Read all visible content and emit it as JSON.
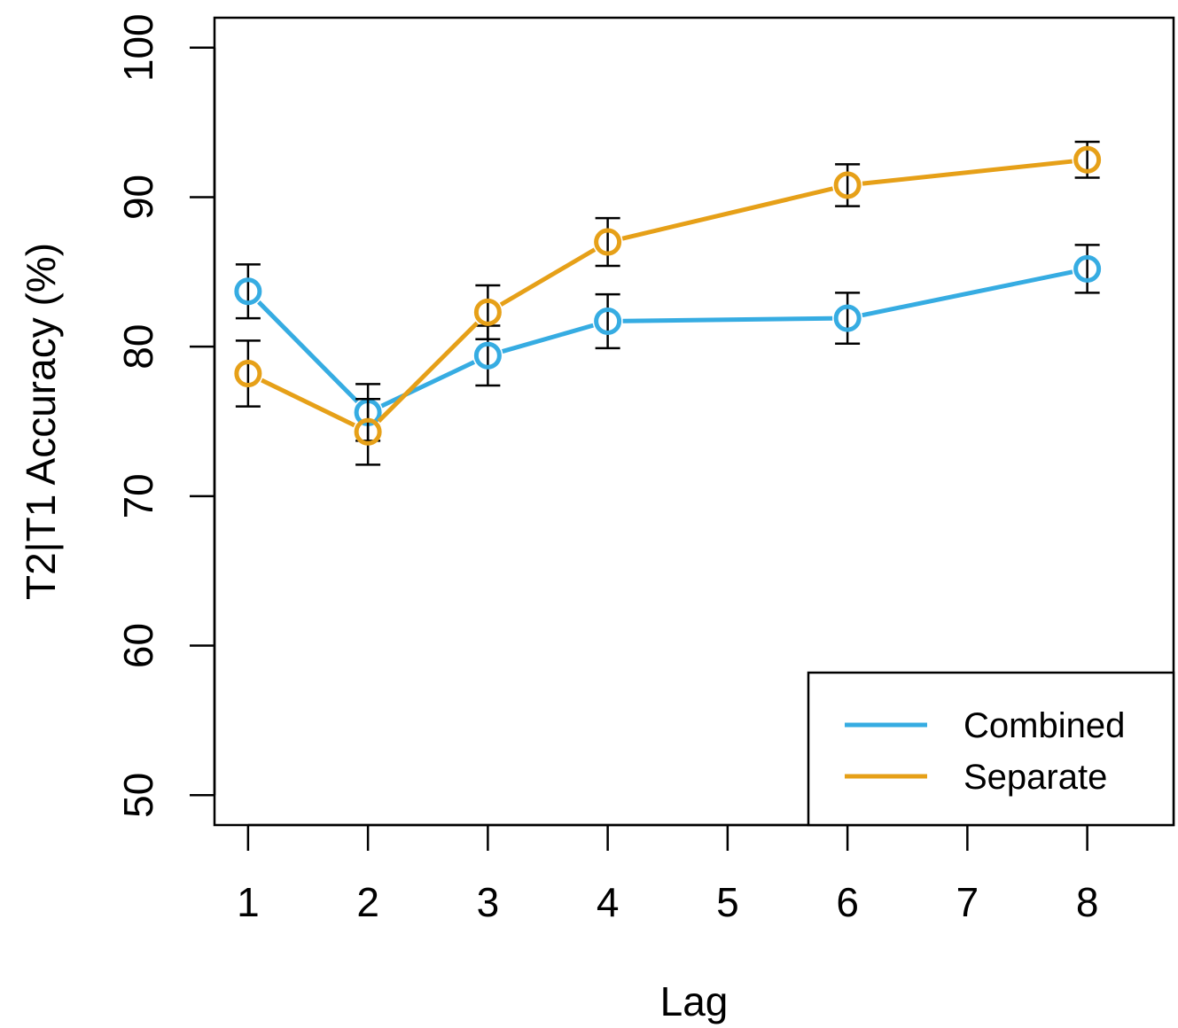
{
  "chart_data": {
    "type": "line",
    "title": "",
    "xlabel": "Lag",
    "ylabel": "T2|T1 Accuracy (%)",
    "x": [
      1,
      2,
      3,
      4,
      6,
      8
    ],
    "xticks": [
      1,
      2,
      3,
      4,
      5,
      6,
      7,
      8
    ],
    "yticks": [
      50,
      60,
      70,
      80,
      90,
      100
    ],
    "xlim": [
      0.72,
      8.72
    ],
    "ylim": [
      48,
      102
    ],
    "grid": false,
    "legend_position": "bottom-right",
    "series": [
      {
        "name": "Combined",
        "color": "#36ace2",
        "values": [
          83.7,
          75.6,
          79.4,
          81.7,
          81.9,
          85.2
        ],
        "error": [
          1.8,
          1.9,
          2.0,
          1.8,
          1.7,
          1.6
        ]
      },
      {
        "name": "Separate",
        "color": "#e6a018",
        "values": [
          78.2,
          74.3,
          82.3,
          87.0,
          90.8,
          92.5
        ],
        "error": [
          2.2,
          2.2,
          1.8,
          1.6,
          1.4,
          1.2
        ]
      }
    ]
  }
}
